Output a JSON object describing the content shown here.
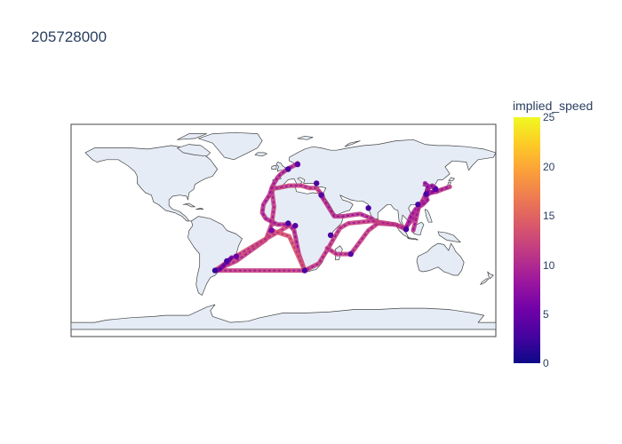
{
  "title": "205728000",
  "colorbar": {
    "title": "implied_speed",
    "ticks": [
      "25",
      "20",
      "15",
      "10",
      "5",
      "0"
    ],
    "range": [
      0,
      25
    ],
    "colorscale": [
      "#0d0887",
      "#46039f",
      "#7201a8",
      "#9c179e",
      "#bd3786",
      "#d8576b",
      "#ed7953",
      "#fb9f3a",
      "#fdca26",
      "#f0f921"
    ]
  },
  "colors": {
    "land": "#e5ecf6",
    "coastline": "#444444",
    "frame": "#444444"
  },
  "chart_data": {
    "type": "scatter",
    "projection": "equirectangular",
    "lon_range": [
      -180,
      180
    ],
    "lat_range": [
      -90,
      90
    ],
    "color_variable": "implied_speed",
    "routes": [
      {
        "lonlat": [
          [
            -58,
            -34
          ],
          [
            -40,
            -26
          ],
          [
            -15,
            -8
          ],
          [
            -10,
            5
          ],
          [
            -8,
            20
          ],
          [
            -10,
            36
          ],
          [
            -5,
            36
          ],
          [
            5,
            38
          ],
          [
            15,
            38
          ],
          [
            22,
            36
          ],
          [
            28,
            36
          ],
          [
            32,
            31
          ]
        ],
        "speed": 12
      },
      {
        "lonlat": [
          [
            32,
            31
          ],
          [
            33,
            28
          ],
          [
            38,
            20
          ],
          [
            43,
            12
          ],
          [
            50,
            12
          ],
          [
            65,
            14
          ],
          [
            75,
            10
          ],
          [
            80,
            6
          ],
          [
            95,
            5
          ],
          [
            103,
            2
          ],
          [
            110,
            10
          ],
          [
            115,
            20
          ],
          [
            121,
            31
          ],
          [
            130,
            33
          ],
          [
            135,
            35
          ],
          [
            141,
            37
          ]
        ],
        "speed": 11
      },
      {
        "lonlat": [
          [
            -58,
            -34
          ],
          [
            -20,
            -34
          ],
          [
            18,
            -34
          ],
          [
            30,
            -28
          ],
          [
            38,
            -15
          ],
          [
            42,
            -8
          ],
          [
            48,
            2
          ],
          [
            55,
            6
          ],
          [
            75,
            8
          ],
          [
            95,
            5
          ],
          [
            104,
            1
          ]
        ],
        "speed": 12
      },
      {
        "lonlat": [
          [
            -58,
            -34
          ],
          [
            -42,
            -23
          ],
          [
            -20,
            -10
          ],
          [
            3,
            3
          ],
          [
            5,
            5
          ]
        ],
        "speed": 13
      },
      {
        "lonlat": [
          [
            18,
            -34
          ],
          [
            13,
            -20
          ],
          [
            9,
            0
          ],
          [
            5,
            5
          ],
          [
            -5,
            5
          ],
          [
            -15,
            10
          ],
          [
            -18,
            15
          ],
          [
            -17,
            22
          ],
          [
            -12,
            30
          ],
          [
            -9,
            38
          ],
          [
            -5,
            45
          ],
          [
            -2,
            48
          ],
          [
            2,
            51
          ],
          [
            5,
            53
          ],
          [
            9,
            55
          ],
          [
            12,
            57
          ]
        ],
        "speed": 11
      },
      {
        "lonlat": [
          [
            18,
            -34
          ],
          [
            5,
            -5
          ],
          [
            -10,
            0
          ]
        ],
        "speed": 14
      },
      {
        "lonlat": [
          [
            120,
            30
          ],
          [
            122,
            26
          ],
          [
            118,
            22
          ],
          [
            112,
            18
          ],
          [
            108,
            12
          ],
          [
            104,
            2
          ]
        ],
        "speed": 10
      },
      {
        "lonlat": [
          [
            121,
            31
          ],
          [
            122,
            35
          ],
          [
            126,
            38
          ],
          [
            129,
            36
          ],
          [
            127,
            33
          ],
          [
            121,
            31
          ]
        ],
        "speed": 9
      },
      {
        "lonlat": [
          [
            37,
            -15
          ],
          [
            45,
            -20
          ],
          [
            57,
            -20
          ],
          [
            72,
            0
          ],
          [
            80,
            6
          ]
        ],
        "speed": 12
      },
      {
        "lonlat": [
          [
            -58,
            -34
          ],
          [
            -54,
            -33
          ],
          [
            -48,
            -27
          ],
          [
            -44,
            -23
          ]
        ],
        "speed": 6
      },
      {
        "lonlat": [
          [
            121,
            29
          ],
          [
            123,
            31
          ],
          [
            122,
            38
          ],
          [
            120,
            40
          ]
        ],
        "speed": 9
      },
      {
        "lonlat": [
          [
            115,
            22
          ],
          [
            112,
            8
          ],
          [
            110,
            0
          ]
        ],
        "speed": 11
      }
    ],
    "port_clusters": [
      {
        "lonlat": [
          -58,
          -34
        ],
        "speed": 2
      },
      {
        "lonlat": [
          -48,
          -26
        ],
        "speed": 3
      },
      {
        "lonlat": [
          4,
          6
        ],
        "speed": 3
      },
      {
        "lonlat": [
          10,
          4
        ],
        "speed": 4
      },
      {
        "lonlat": [
          18,
          -34
        ],
        "speed": 3
      },
      {
        "lonlat": [
          32,
          30
        ],
        "speed": 4
      },
      {
        "lonlat": [
          4,
          52
        ],
        "speed": 3
      },
      {
        "lonlat": [
          12,
          56
        ],
        "speed": 4
      },
      {
        "lonlat": [
          28,
          40
        ],
        "speed": 3
      },
      {
        "lonlat": [
          104,
          1
        ],
        "speed": 3
      },
      {
        "lonlat": [
          121,
          31
        ],
        "speed": 3
      },
      {
        "lonlat": [
          114,
          22
        ],
        "speed": 3
      },
      {
        "lonlat": [
          129,
          35
        ],
        "speed": 4
      },
      {
        "lonlat": [
          40,
          -4
        ],
        "speed": 3
      },
      {
        "lonlat": [
          57,
          -20
        ],
        "speed": 4
      },
      {
        "lonlat": [
          72,
          19
        ],
        "speed": 3
      },
      {
        "lonlat": [
          -40,
          -22
        ],
        "speed": 5
      },
      {
        "lonlat": [
          -10,
          0
        ],
        "speed": 6
      }
    ]
  }
}
